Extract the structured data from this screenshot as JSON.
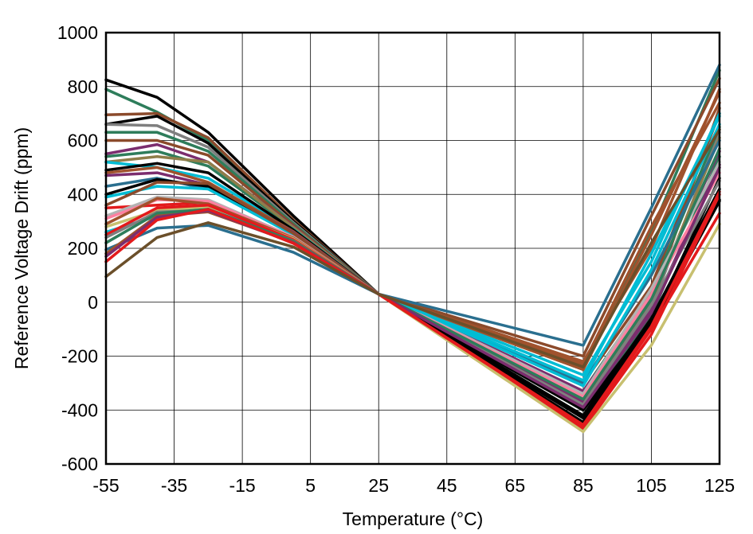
{
  "chart_data": {
    "type": "line",
    "title": "",
    "xlabel": "Temperature (°C)",
    "ylabel": "Reference Voltage Drift (ppm)",
    "xlim": [
      -55,
      125
    ],
    "ylim": [
      -600,
      1000
    ],
    "xticks": [
      -55,
      -35,
      -15,
      5,
      25,
      45,
      65,
      85,
      105,
      125
    ],
    "yticks": [
      -600,
      -400,
      -200,
      0,
      200,
      400,
      600,
      800,
      1000
    ],
    "grid": true,
    "legend": "none",
    "x": [
      -55,
      -40,
      -25,
      0,
      25,
      85,
      105,
      125
    ],
    "series": [
      {
        "color": "#000000",
        "values": [
          825,
          760,
          630,
          320,
          30,
          -445,
          -90,
          375
        ]
      },
      {
        "color": "#2e7d5b",
        "values": [
          790,
          705,
          600,
          300,
          30,
          -400,
          -50,
          540
        ]
      },
      {
        "color": "#8b4a2b",
        "values": [
          695,
          700,
          610,
          305,
          30,
          -380,
          0,
          720
        ]
      },
      {
        "color": "#000000",
        "values": [
          660,
          690,
          590,
          300,
          30,
          -420,
          -60,
          420
        ]
      },
      {
        "color": "#7f7f7f",
        "values": [
          660,
          655,
          575,
          295,
          30,
          -360,
          -20,
          630
        ]
      },
      {
        "color": "#2e7d5b",
        "values": [
          630,
          630,
          560,
          290,
          30,
          -330,
          40,
          650
        ]
      },
      {
        "color": "#8b4a2b",
        "values": [
          600,
          600,
          545,
          285,
          30,
          -300,
          60,
          700
        ]
      },
      {
        "color": "#7b2d6e",
        "values": [
          550,
          585,
          520,
          280,
          30,
          -370,
          -30,
          510
        ]
      },
      {
        "color": "#2e7d5b",
        "values": [
          540,
          560,
          505,
          275,
          30,
          -250,
          260,
          860
        ]
      },
      {
        "color": "#8f7e4a",
        "values": [
          520,
          540,
          520,
          278,
          30,
          -380,
          0,
          610
        ]
      },
      {
        "color": "#00bcd4",
        "values": [
          520,
          500,
          460,
          270,
          30,
          -270,
          150,
          700
        ]
      },
      {
        "color": "#000000",
        "values": [
          490,
          515,
          480,
          268,
          30,
          -430,
          -80,
          460
        ]
      },
      {
        "color": "#a0522d",
        "values": [
          480,
          500,
          445,
          262,
          30,
          -220,
          200,
          790
        ]
      },
      {
        "color": "#7b2d6e",
        "values": [
          470,
          480,
          435,
          258,
          30,
          -330,
          20,
          560
        ]
      },
      {
        "color": "#2a6f8f",
        "values": [
          430,
          460,
          420,
          255,
          30,
          -300,
          100,
          600
        ]
      },
      {
        "color": "#000000",
        "values": [
          400,
          455,
          430,
          252,
          30,
          -400,
          -70,
          380
        ]
      },
      {
        "color": "#00bcd4",
        "values": [
          390,
          430,
          420,
          250,
          30,
          -310,
          120,
          660
        ]
      },
      {
        "color": "#8b4a2b",
        "values": [
          360,
          445,
          440,
          255,
          30,
          -200,
          320,
          830
        ]
      },
      {
        "color": "#e31a1c",
        "values": [
          350,
          360,
          370,
          240,
          30,
          -470,
          -120,
          400
        ]
      },
      {
        "color": "#b3b3b3",
        "values": [
          320,
          390,
          380,
          242,
          30,
          -340,
          50,
          520
        ]
      },
      {
        "color": "#ff80a0",
        "values": [
          310,
          380,
          375,
          240,
          30,
          -350,
          30,
          480
        ]
      },
      {
        "color": "#a0522d",
        "values": [
          290,
          385,
          365,
          238,
          30,
          -250,
          250,
          780
        ]
      },
      {
        "color": "#c8c070",
        "values": [
          280,
          340,
          355,
          235,
          30,
          -480,
          -160,
          290
        ]
      },
      {
        "color": "#00bcd4",
        "values": [
          260,
          320,
          345,
          230,
          30,
          -290,
          180,
          690
        ]
      },
      {
        "color": "#e31a1c",
        "values": [
          250,
          350,
          360,
          232,
          30,
          -460,
          -100,
          330
        ]
      },
      {
        "color": "#7f7f7f",
        "values": [
          240,
          335,
          340,
          228,
          30,
          -380,
          -10,
          450
        ]
      },
      {
        "color": "#2e7d5b",
        "values": [
          220,
          330,
          345,
          226,
          30,
          -360,
          10,
          570
        ]
      },
      {
        "color": "#2a6f8f",
        "values": [
          195,
          275,
          285,
          185,
          30,
          -160,
          350,
          880
        ]
      },
      {
        "color": "#a0522d",
        "values": [
          180,
          320,
          335,
          222,
          30,
          -230,
          280,
          740
        ]
      },
      {
        "color": "#7b2d6e",
        "values": [
          170,
          315,
          340,
          220,
          30,
          -390,
          -40,
          500
        ]
      },
      {
        "color": "#e31a1c",
        "values": [
          150,
          305,
          345,
          218,
          30,
          -455,
          -90,
          410
        ]
      },
      {
        "color": "#6b4f2a",
        "values": [
          95,
          240,
          295,
          205,
          30,
          -240,
          220,
          640
        ]
      }
    ]
  }
}
